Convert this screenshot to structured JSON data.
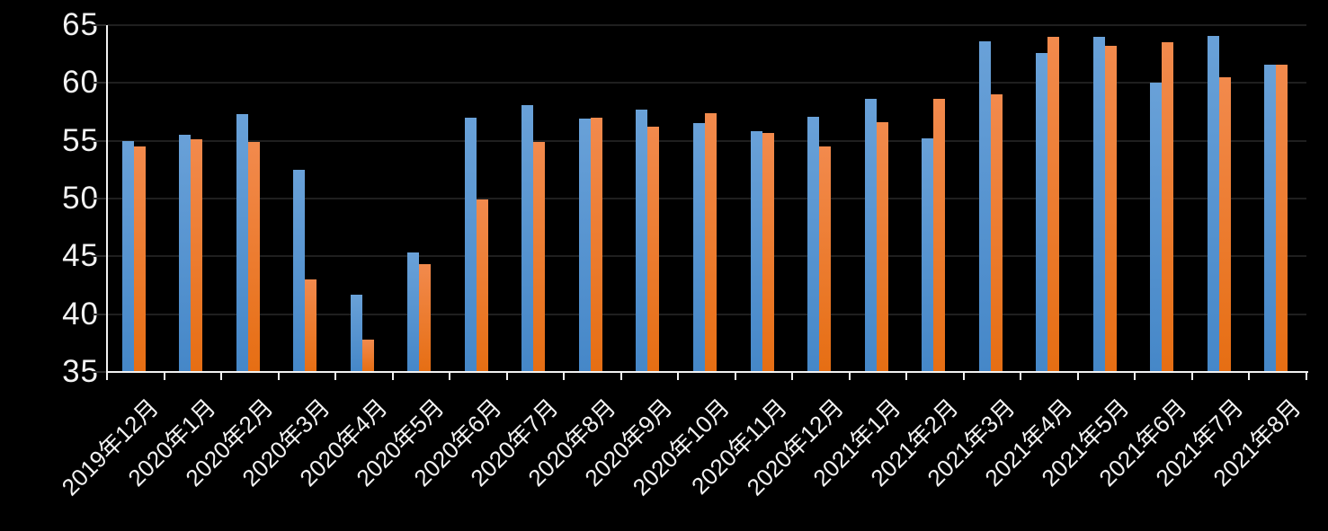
{
  "chart_data": {
    "type": "bar",
    "title": "",
    "xlabel": "",
    "ylabel": "",
    "categories": [
      "2019年12月",
      "2020年1月",
      "2020年2月",
      "2020年3月",
      "2020年4月",
      "2020年5月",
      "2020年6月",
      "2020年7月",
      "2020年8月",
      "2020年9月",
      "2020年10月",
      "2020年11月",
      "2020年12月",
      "2021年1月",
      "2021年2月",
      "2021年3月",
      "2021年4月",
      "2021年5月",
      "2021年6月",
      "2021年7月",
      "2021年8月"
    ],
    "series": [
      {
        "key": "blue",
        "values": [
          55.0,
          55.5,
          57.3,
          52.5,
          41.7,
          45.3,
          57.0,
          58.1,
          56.9,
          57.7,
          56.5,
          55.8,
          57.1,
          58.6,
          55.2,
          63.6,
          62.6,
          64.0,
          60.0,
          64.1,
          61.6
        ]
      },
      {
        "key": "orange",
        "values": [
          54.5,
          55.1,
          54.9,
          43.0,
          37.8,
          44.3,
          49.9,
          54.9,
          57.0,
          56.2,
          57.4,
          55.7,
          54.5,
          56.6,
          58.6,
          59.0,
          64.0,
          63.2,
          63.5,
          60.5,
          61.6
        ]
      }
    ],
    "ylim": [
      35,
      65
    ],
    "yticks": [
      35,
      40,
      45,
      50,
      55,
      60,
      65
    ],
    "grid": true,
    "legend_position": "none",
    "colors": {
      "background": "#000000",
      "gridline": "#1f1f1f",
      "axis_line": "#f2f2f2",
      "label_text": "#f2f2f2",
      "blue_top": "#69a1d8",
      "blue_bottom": "#4587c8",
      "orange_top": "#f28a4d",
      "orange_bottom": "#e66e13"
    }
  }
}
